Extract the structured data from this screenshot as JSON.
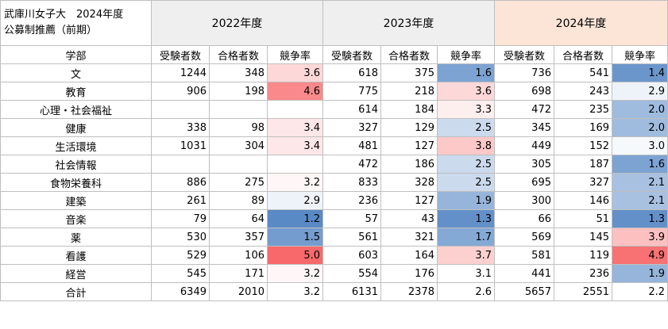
{
  "title_line1": "武庫川女子大　2024年度",
  "title_line2": "公募制推薦（前期）",
  "year_headers": [
    "2022年度",
    "2023年度",
    "2024年度"
  ],
  "col_headers": [
    "学部",
    "受験者数",
    "合格者数",
    "競争率",
    "受験者数",
    "合格者数",
    "競争率",
    "受験者数",
    "合格者数",
    "競争率"
  ],
  "colors": {
    "y22_header": "#efefef",
    "y23_header": "#efefef",
    "y24_header": "#fce4d6",
    "high_ratio": "#f8696b",
    "low_ratio": "#5a8ac6",
    "neutral": "#ffffff"
  },
  "rows": [
    {
      "dept": "文",
      "y2022": [
        "1244",
        "348",
        "3.6"
      ],
      "y2023": [
        "618",
        "375",
        "1.6"
      ],
      "y2024": [
        "736",
        "541",
        "1.4"
      ]
    },
    {
      "dept": "教育",
      "y2022": [
        "906",
        "198",
        "4.6"
      ],
      "y2023": [
        "775",
        "218",
        "3.6"
      ],
      "y2024": [
        "698",
        "243",
        "2.9"
      ]
    },
    {
      "dept": "心理・社会福祉",
      "y2022": [
        "",
        "",
        ""
      ],
      "y2023": [
        "614",
        "184",
        "3.3"
      ],
      "y2024": [
        "472",
        "235",
        "2.0"
      ]
    },
    {
      "dept": "健康",
      "y2022": [
        "338",
        "98",
        "3.4"
      ],
      "y2023": [
        "327",
        "129",
        "2.5"
      ],
      "y2024": [
        "345",
        "169",
        "2.0"
      ]
    },
    {
      "dept": "生活環境",
      "y2022": [
        "1031",
        "304",
        "3.4"
      ],
      "y2023": [
        "481",
        "127",
        "3.8"
      ],
      "y2024": [
        "449",
        "152",
        "3.0"
      ]
    },
    {
      "dept": "社会情報",
      "y2022": [
        "",
        "",
        ""
      ],
      "y2023": [
        "472",
        "186",
        "2.5"
      ],
      "y2024": [
        "305",
        "187",
        "1.6"
      ]
    },
    {
      "dept": "食物栄養科",
      "y2022": [
        "886",
        "275",
        "3.2"
      ],
      "y2023": [
        "833",
        "328",
        "2.5"
      ],
      "y2024": [
        "695",
        "327",
        "2.1"
      ]
    },
    {
      "dept": "建築",
      "y2022": [
        "261",
        "89",
        "2.9"
      ],
      "y2023": [
        "236",
        "127",
        "1.9"
      ],
      "y2024": [
        "300",
        "146",
        "2.1"
      ]
    },
    {
      "dept": "音楽",
      "y2022": [
        "79",
        "64",
        "1.2"
      ],
      "y2023": [
        "57",
        "43",
        "1.3"
      ],
      "y2024": [
        "66",
        "51",
        "1.3"
      ]
    },
    {
      "dept": "薬",
      "y2022": [
        "530",
        "357",
        "1.5"
      ],
      "y2023": [
        "561",
        "321",
        "1.7"
      ],
      "y2024": [
        "569",
        "145",
        "3.9"
      ]
    },
    {
      "dept": "看護",
      "y2022": [
        "529",
        "106",
        "5.0"
      ],
      "y2023": [
        "603",
        "164",
        "3.7"
      ],
      "y2024": [
        "581",
        "119",
        "4.9"
      ]
    },
    {
      "dept": "経営",
      "y2022": [
        "545",
        "171",
        "3.2"
      ],
      "y2023": [
        "554",
        "176",
        "3.1"
      ],
      "y2024": [
        "441",
        "236",
        "1.9"
      ]
    },
    {
      "dept": "合計",
      "y2022": [
        "6349",
        "2010",
        "3.2"
      ],
      "y2023": [
        "6131",
        "2378",
        "2.6"
      ],
      "y2024": [
        "5657",
        "2551",
        "2.2"
      ]
    }
  ]
}
